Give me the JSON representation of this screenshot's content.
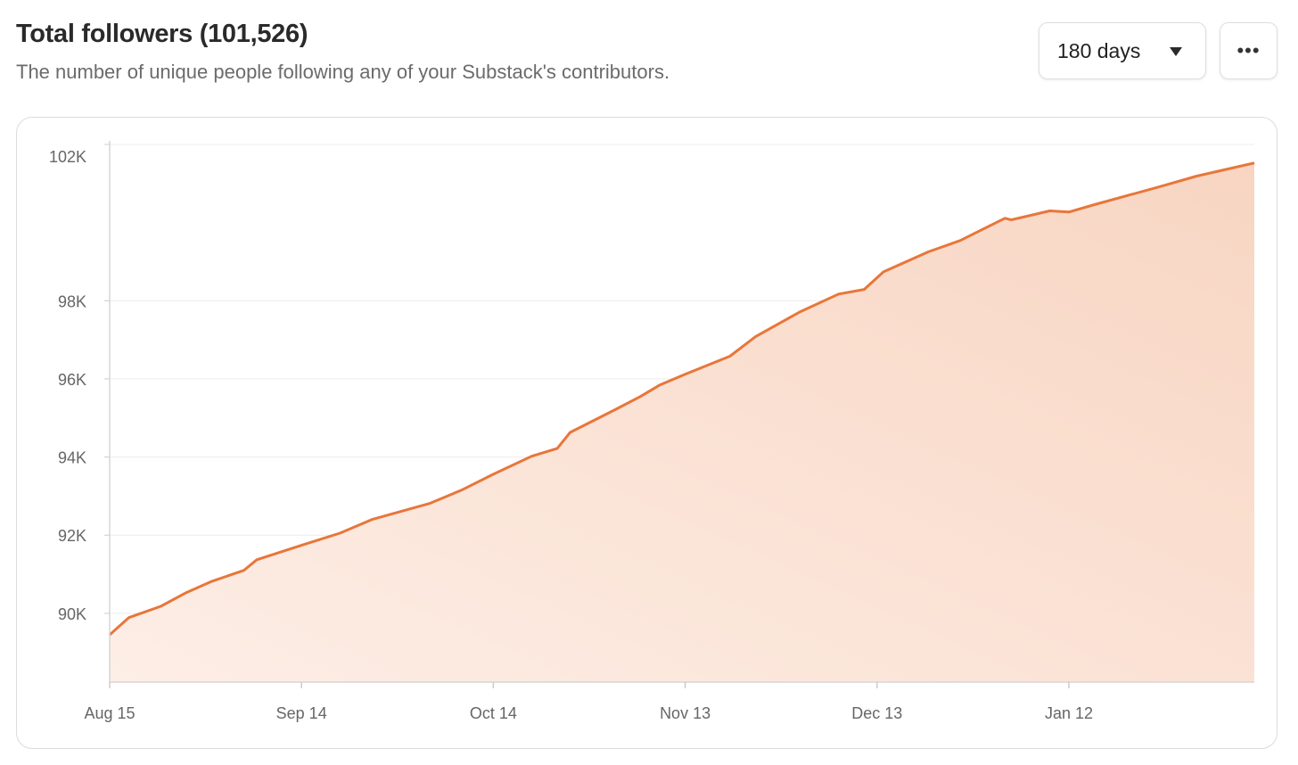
{
  "header": {
    "title": "Total followers (101,526)",
    "subtitle": "The number of unique people following any of your Substack's contributors."
  },
  "controls": {
    "range_label": "180 days",
    "range_icon": "caret-down-icon",
    "more_label": "•••",
    "more_icon": "more-horizontal-icon"
  },
  "chart_data": {
    "type": "area",
    "title": "",
    "xlabel": "",
    "ylabel": "",
    "color": "#e8763a",
    "fill_color": "#f9d9c8",
    "grid": true,
    "legend": "none",
    "ylim": [
      88240,
      102000
    ],
    "xlim": [
      "Aug 15",
      "Feb 10"
    ],
    "y_ticks": [
      {
        "value": 90000,
        "label": "90K"
      },
      {
        "value": 92000,
        "label": "92K"
      },
      {
        "value": 94000,
        "label": "94K"
      },
      {
        "value": 96000,
        "label": "96K"
      },
      {
        "value": 98000,
        "label": "98K"
      },
      {
        "value": 102000,
        "label": "102K"
      }
    ],
    "x_ticks": [
      "Aug 15",
      "Sep 14",
      "Oct 14",
      "Nov 13",
      "Dec 13",
      "Jan 12"
    ],
    "series": [
      {
        "x": [
          "Aug 15",
          "Aug 18",
          "Aug 23",
          "Aug 27",
          "Aug 31",
          "Sep 5",
          "Sep 7",
          "Sep 14",
          "Sep 20",
          "Sep 25",
          "Oct 4",
          "Oct 9",
          "Oct 14",
          "Oct 20",
          "Oct 24",
          "Oct 26",
          "Nov 2",
          "Nov 6",
          "Nov 9",
          "Nov 13",
          "Nov 20",
          "Nov 24",
          "Dec 1",
          "Dec 7",
          "Dec 11",
          "Dec 14",
          "Dec 21",
          "Dec 26",
          "Jan 2",
          "Jan 3",
          "Jan 9",
          "Jan 12",
          "Jan 16",
          "Jan 26",
          "Feb 1",
          "Feb 10"
        ],
        "y": [
          89450,
          89890,
          90180,
          90530,
          90820,
          91100,
          91370,
          91740,
          92050,
          92400,
          92810,
          93150,
          93560,
          94020,
          94220,
          94630,
          95210,
          95550,
          95840,
          96120,
          96580,
          97080,
          97720,
          98170,
          98290,
          98740,
          99250,
          99540,
          100110,
          100070,
          100300,
          100270,
          100460,
          100910,
          101190,
          101526
        ]
      }
    ]
  }
}
